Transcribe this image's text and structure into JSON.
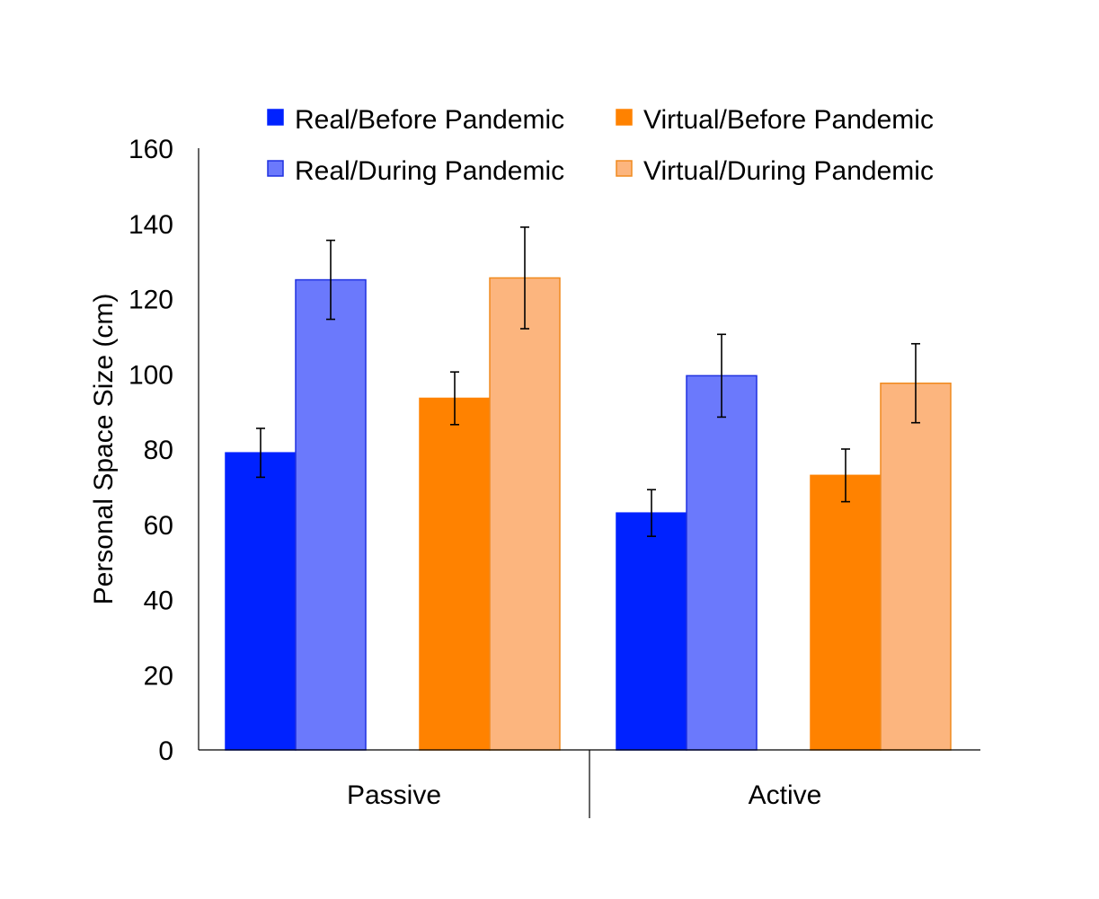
{
  "chart_data": {
    "type": "bar",
    "title": "",
    "xlabel": "",
    "ylabel": "Personal Space Size (cm)",
    "ylim": [
      0,
      160
    ],
    "yticks": [
      0,
      20,
      40,
      60,
      80,
      100,
      120,
      140,
      160
    ],
    "grid": false,
    "legend_position": "top",
    "categories": [
      "Passive",
      "Active"
    ],
    "groups": [
      {
        "members": [
          "Real/Before Pandemic",
          "Real/During Pandemic"
        ]
      },
      {
        "members": [
          "Virtual/Before Pandemic",
          "Virtual/During Pandemic"
        ]
      }
    ],
    "series": [
      {
        "name": "Real/Before Pandemic",
        "fill": "#0022ff",
        "stroke": "#0022ff",
        "values": [
          79,
          63
        ],
        "errors": [
          6.5,
          6.2
        ]
      },
      {
        "name": "Real/During Pandemic",
        "fill": "#6b79fc",
        "stroke": "#1f31e0",
        "values": [
          125,
          99.5
        ],
        "errors": [
          10.5,
          11
        ]
      },
      {
        "name": "Virtual/Before Pandemic",
        "fill": "#ff8200",
        "stroke": "#ff8200",
        "values": [
          93.5,
          73
        ],
        "errors": [
          7,
          7
        ]
      },
      {
        "name": "Virtual/During Pandemic",
        "fill": "#fcb57e",
        "stroke": "#f08a1e",
        "values": [
          125.5,
          97.5
        ],
        "errors": [
          13.5,
          10.5
        ]
      }
    ]
  }
}
